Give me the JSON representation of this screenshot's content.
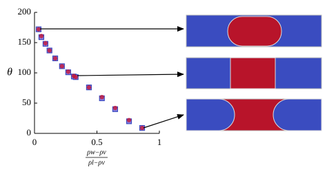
{
  "chart_data": {
    "type": "scatter",
    "ylabel": "θ",
    "xlabel_numerator": "ρw−ρv",
    "xlabel_denominator": "ρl−ρv",
    "xlim": [
      0,
      1
    ],
    "xticks": [
      0,
      0.5,
      1
    ],
    "ylim": [
      0,
      200
    ],
    "yticks": [
      0,
      50,
      100,
      150,
      200
    ],
    "series": [
      {
        "color": "#3b4cc0",
        "marker": "square",
        "x": [
          0.033,
          0.055,
          0.088,
          0.12,
          0.166,
          0.22,
          0.27,
          0.315,
          0.33,
          0.436,
          0.54,
          0.646,
          0.757,
          0.862
        ],
        "values": [
          172,
          159,
          148,
          137,
          124,
          111,
          101,
          94,
          93,
          76,
          58,
          40,
          20,
          9
        ]
      },
      {
        "color": "#c8102e",
        "marker": "circle",
        "x": [
          0.033,
          0.055,
          0.088,
          0.12,
          0.166,
          0.22,
          0.27,
          0.315,
          0.33,
          0.436,
          0.54,
          0.646,
          0.757,
          0.862
        ],
        "values": [
          172,
          161,
          149,
          137,
          124,
          111,
          102,
          95,
          93,
          76,
          60,
          42,
          22,
          9
        ]
      }
    ]
  }
}
